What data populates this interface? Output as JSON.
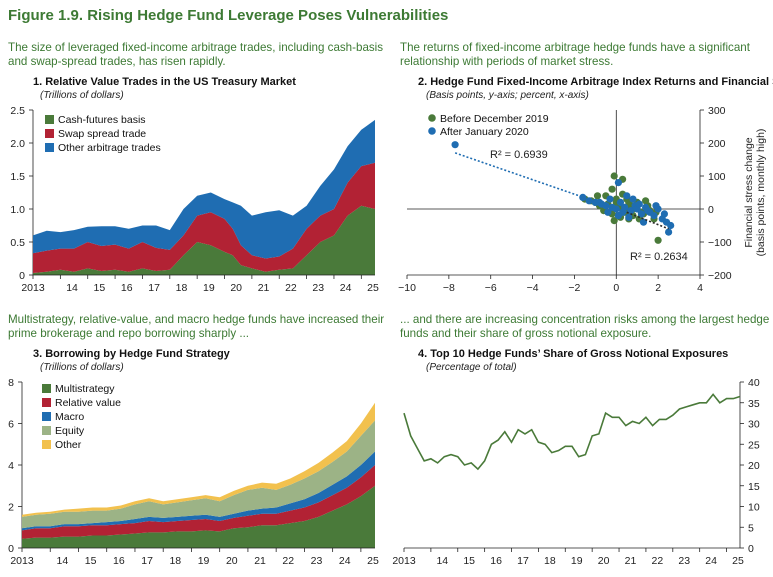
{
  "figure": {
    "title": "Figure 1.9. Rising Hedge Fund Leverage Poses Vulnerabilities",
    "lead_1_line1": "The size of leveraged fixed-income arbitrage trades, including cash-basis",
    "lead_1_line2": "and swap-spread trades, has risen rapidly.",
    "lead_2_line1": "The returns of fixed-income arbitrage hedge funds have a significant",
    "lead_2_line2": "relationship with periods of market stress.",
    "lead_3_line1": "Multistrategy, relative-value, and macro hedge funds have increased their",
    "lead_3_line2": "prime brokerage and repo borrowing sharply ...",
    "lead_4_line1": "... and there are increasing concentration risks among the largest hedge",
    "lead_4_line2": "funds and their share of gross notional exposure."
  },
  "chart_data": [
    {
      "id": "panel1",
      "type": "area",
      "stacked": true,
      "title": "1. Relative Value Trades in the US Treasury Market",
      "subtitle": "(Trillions of dollars)",
      "x_tick_labels": [
        "2013",
        "14",
        "15",
        "16",
        "17",
        "18",
        "19",
        "20",
        "21",
        "22",
        "23",
        "24",
        "25"
      ],
      "x_range": [
        2013,
        2025.5
      ],
      "ylim": [
        0,
        2.5
      ],
      "y_ticks": [
        0,
        0.5,
        1.0,
        1.5,
        2.0,
        2.5
      ],
      "y_tick_labels": [
        "0",
        "0.5",
        "1.0",
        "1.5",
        "2.0",
        "2.5"
      ],
      "legend_position": "top-left",
      "colors": [
        "#4a7a3a",
        "#b22234",
        "#1f6db2"
      ],
      "series": [
        {
          "name": "Cash-futures basis",
          "x": [
            2013,
            2013.5,
            2014,
            2014.5,
            2015,
            2015.5,
            2016,
            2016.5,
            2017,
            2017.5,
            2018,
            2018.5,
            2019,
            2019.5,
            2020,
            2020.3,
            2020.6,
            2021,
            2021.5,
            2022,
            2022.5,
            2023,
            2023.5,
            2024,
            2024.5,
            2025,
            2025.5
          ],
          "values": [
            0.03,
            0.05,
            0.08,
            0.05,
            0.1,
            0.06,
            0.08,
            0.05,
            0.1,
            0.06,
            0.08,
            0.3,
            0.5,
            0.45,
            0.35,
            0.3,
            0.15,
            0.1,
            0.05,
            0.08,
            0.1,
            0.3,
            0.5,
            0.6,
            0.9,
            1.05,
            1.0
          ]
        },
        {
          "name": "Swap spread trade",
          "x": [
            2013,
            2013.5,
            2014,
            2014.5,
            2015,
            2015.5,
            2016,
            2016.5,
            2017,
            2017.5,
            2018,
            2018.5,
            2019,
            2019.5,
            2020,
            2020.3,
            2020.6,
            2021,
            2021.5,
            2022,
            2022.5,
            2023,
            2023.5,
            2024,
            2024.5,
            2025,
            2025.5
          ],
          "values": [
            0.3,
            0.32,
            0.32,
            0.35,
            0.4,
            0.38,
            0.38,
            0.35,
            0.4,
            0.35,
            0.3,
            0.3,
            0.4,
            0.5,
            0.5,
            0.4,
            0.3,
            0.2,
            0.2,
            0.2,
            0.3,
            0.4,
            0.4,
            0.4,
            0.5,
            0.6,
            0.7
          ]
        },
        {
          "name": "Other arbitrage trades",
          "x": [
            2013,
            2013.5,
            2014,
            2014.5,
            2015,
            2015.5,
            2016,
            2016.5,
            2017,
            2017.5,
            2018,
            2018.5,
            2019,
            2019.5,
            2020,
            2020.3,
            2020.6,
            2021,
            2021.5,
            2022,
            2022.5,
            2023,
            2023.5,
            2024,
            2024.5,
            2025,
            2025.5
          ],
          "values": [
            0.27,
            0.3,
            0.25,
            0.28,
            0.23,
            0.3,
            0.28,
            0.3,
            0.25,
            0.34,
            0.3,
            0.4,
            0.3,
            0.3,
            0.3,
            0.4,
            0.6,
            0.6,
            0.7,
            0.7,
            0.5,
            0.35,
            0.45,
            0.6,
            0.55,
            0.55,
            0.65
          ]
        }
      ]
    },
    {
      "id": "panel2",
      "type": "scatter",
      "title": "2. Hedge Fund Fixed-Income Arbitrage Index Returns and Financial Stress",
      "subtitle": "(Basis points, y-axis; percent, x-axis)",
      "xlim": [
        -10,
        4
      ],
      "ylim": [
        -200,
        300
      ],
      "x_ticks": [
        -10,
        -8,
        -6,
        -4,
        -2,
        0,
        2,
        4
      ],
      "x_tick_labels": [
        "−10",
        "−8",
        "−6",
        "−4",
        "−2",
        "0",
        "2",
        "4"
      ],
      "y_ticks": [
        -200,
        -100,
        0,
        100,
        200,
        300
      ],
      "y_tick_labels": [
        "−200",
        "−100",
        "0",
        "100",
        "200",
        "300"
      ],
      "ylabel_line1": "Financial stress change",
      "ylabel_line2": "(basis points, monthly high)",
      "legend_position": "top-left",
      "series": [
        {
          "name": "Before December 2019",
          "color": "#4a7a3a",
          "x": [
            -1.5,
            -1.0,
            -0.8,
            -0.5,
            -0.3,
            -0.2,
            -0.1,
            0.0,
            0.1,
            0.2,
            0.3,
            0.4,
            0.5,
            0.6,
            0.7,
            0.8,
            1.0,
            1.2,
            1.5,
            1.8,
            2.0,
            -0.6,
            0.2,
            0.9,
            1.3,
            0.0,
            -0.4,
            0.5,
            1.1,
            -1.2,
            0.3,
            0.7,
            1.6,
            -0.2,
            0.6,
            1.9,
            -0.9,
            1.4,
            -0.1,
            0.8
          ],
          "y": [
            30,
            20,
            10,
            40,
            -10,
            60,
            100,
            20,
            -20,
            5,
            90,
            -10,
            30,
            -30,
            10,
            -20,
            20,
            -10,
            10,
            -30,
            -95,
            -5,
            -25,
            5,
            -15,
            30,
            15,
            -5,
            -30,
            25,
            45,
            -15,
            -5,
            -15,
            20,
            -10,
            40,
            25,
            -35,
            0
          ]
        },
        {
          "name": "After January 2020",
          "color": "#1f6db2",
          "x": [
            -7.7,
            -1.6,
            -1.3,
            -1.0,
            -0.7,
            -0.5,
            -0.3,
            -0.2,
            0.0,
            0.1,
            0.2,
            0.3,
            0.5,
            0.7,
            0.9,
            1.0,
            1.2,
            1.4,
            1.6,
            1.8,
            2.0,
            2.2,
            2.4,
            2.5,
            0.1,
            0.4,
            -0.8,
            0.6,
            1.1,
            1.5,
            2.3,
            -0.4,
            0.8,
            1.3,
            1.9,
            2.6
          ],
          "y": [
            195,
            35,
            25,
            20,
            15,
            10,
            30,
            5,
            0,
            80,
            20,
            -10,
            40,
            -5,
            10,
            0,
            -15,
            5,
            -10,
            -20,
            0,
            -30,
            -40,
            -70,
            -20,
            5,
            20,
            -25,
            15,
            -5,
            -15,
            -10,
            30,
            -40,
            10,
            -50
          ]
        }
      ],
      "fit_lines": [
        {
          "label": "R² = 0.6939",
          "x": [
            -7.7,
            0.5
          ],
          "y": [
            170,
            -10
          ]
        },
        {
          "label": "R² = 0.2634",
          "x": [
            0.5,
            2.5
          ],
          "y": [
            -10,
            -60
          ]
        }
      ]
    },
    {
      "id": "panel3",
      "type": "area",
      "stacked": true,
      "title": "3. Borrowing by Hedge Fund Strategy",
      "subtitle": "(Trillions of dollars)",
      "x_tick_labels": [
        "2013",
        "14",
        "15",
        "16",
        "17",
        "18",
        "19",
        "20",
        "21",
        "22",
        "23",
        "24",
        "25"
      ],
      "x_range": [
        2013,
        2025.5
      ],
      "ylim": [
        0,
        8
      ],
      "y_ticks": [
        0,
        2,
        4,
        6,
        8
      ],
      "y_tick_labels": [
        "0",
        "2",
        "4",
        "6",
        "8"
      ],
      "legend_position": "top-left",
      "colors": [
        "#4a7a3a",
        "#b22234",
        "#1f6db2",
        "#9cb386",
        "#f2c14e"
      ],
      "series": [
        {
          "name": "Multistrategy",
          "x": [
            2013,
            2013.5,
            2014,
            2014.5,
            2015,
            2015.5,
            2016,
            2016.5,
            2017,
            2017.5,
            2018,
            2018.5,
            2019,
            2019.5,
            2020,
            2020.5,
            2021,
            2021.5,
            2022,
            2022.5,
            2023,
            2023.5,
            2024,
            2024.5,
            2025,
            2025.5
          ],
          "values": [
            0.45,
            0.5,
            0.5,
            0.55,
            0.55,
            0.6,
            0.6,
            0.65,
            0.7,
            0.75,
            0.75,
            0.8,
            0.8,
            0.85,
            0.8,
            0.95,
            1.0,
            1.1,
            1.1,
            1.2,
            1.3,
            1.5,
            1.8,
            2.1,
            2.5,
            3.0
          ]
        },
        {
          "name": "Relative value",
          "x": [
            2013,
            2013.5,
            2014,
            2014.5,
            2015,
            2015.5,
            2016,
            2016.5,
            2017,
            2017.5,
            2018,
            2018.5,
            2019,
            2019.5,
            2020,
            2020.5,
            2021,
            2021.5,
            2022,
            2022.5,
            2023,
            2023.5,
            2024,
            2024.5,
            2025,
            2025.5
          ],
          "values": [
            0.4,
            0.45,
            0.45,
            0.5,
            0.5,
            0.5,
            0.5,
            0.5,
            0.5,
            0.55,
            0.5,
            0.5,
            0.55,
            0.55,
            0.5,
            0.5,
            0.55,
            0.55,
            0.55,
            0.6,
            0.65,
            0.7,
            0.75,
            0.8,
            0.9,
            1.0
          ]
        },
        {
          "name": "Macro",
          "x": [
            2013,
            2013.5,
            2014,
            2014.5,
            2015,
            2015.5,
            2016,
            2016.5,
            2017,
            2017.5,
            2018,
            2018.5,
            2019,
            2019.5,
            2020,
            2020.5,
            2021,
            2021.5,
            2022,
            2022.5,
            2023,
            2023.5,
            2024,
            2024.5,
            2025,
            2025.5
          ],
          "values": [
            0.1,
            0.1,
            0.1,
            0.1,
            0.1,
            0.1,
            0.15,
            0.15,
            0.2,
            0.2,
            0.2,
            0.2,
            0.2,
            0.2,
            0.2,
            0.2,
            0.25,
            0.25,
            0.3,
            0.35,
            0.4,
            0.45,
            0.5,
            0.55,
            0.6,
            0.65
          ]
        },
        {
          "name": "Equity",
          "x": [
            2013,
            2013.5,
            2014,
            2014.5,
            2015,
            2015.5,
            2016,
            2016.5,
            2017,
            2017.5,
            2018,
            2018.5,
            2019,
            2019.5,
            2020,
            2020.5,
            2021,
            2021.5,
            2022,
            2022.5,
            2023,
            2023.5,
            2024,
            2024.5,
            2025,
            2025.5
          ],
          "values": [
            0.55,
            0.55,
            0.6,
            0.6,
            0.6,
            0.6,
            0.55,
            0.6,
            0.7,
            0.75,
            0.65,
            0.7,
            0.75,
            0.8,
            0.75,
            0.9,
            1.0,
            1.0,
            0.85,
            0.9,
            1.0,
            1.05,
            1.1,
            1.2,
            1.4,
            1.5
          ]
        },
        {
          "name": "Other",
          "x": [
            2013,
            2013.5,
            2014,
            2014.5,
            2015,
            2015.5,
            2016,
            2016.5,
            2017,
            2017.5,
            2018,
            2018.5,
            2019,
            2019.5,
            2020,
            2020.5,
            2021,
            2021.5,
            2022,
            2022.5,
            2023,
            2023.5,
            2024,
            2024.5,
            2025,
            2025.5
          ],
          "values": [
            0.1,
            0.1,
            0.1,
            0.1,
            0.15,
            0.15,
            0.15,
            0.15,
            0.15,
            0.15,
            0.15,
            0.15,
            0.15,
            0.15,
            0.2,
            0.2,
            0.2,
            0.25,
            0.3,
            0.3,
            0.35,
            0.4,
            0.45,
            0.5,
            0.6,
            0.85
          ]
        }
      ]
    },
    {
      "id": "panel4",
      "type": "line",
      "title": "4. Top 10 Hedge Funds’ Share of Gross Notional Exposures",
      "subtitle": "(Percentage of total)",
      "x_tick_labels": [
        "2013",
        "14",
        "15",
        "16",
        "17",
        "18",
        "19",
        "20",
        "21",
        "22",
        "23",
        "24",
        "25"
      ],
      "x_range": [
        2013,
        2025.5
      ],
      "ylim": [
        0,
        40
      ],
      "y_ticks": [
        0,
        5,
        10,
        15,
        20,
        25,
        30,
        35,
        40
      ],
      "y_tick_labels": [
        "0",
        "5",
        "10",
        "15",
        "20",
        "25",
        "30",
        "35",
        "40"
      ],
      "series": [
        {
          "name": "Top 10 share",
          "color": "#4a7a3a",
          "x": [
            2013,
            2013.25,
            2013.5,
            2013.75,
            2014,
            2014.25,
            2014.5,
            2014.75,
            2015,
            2015.25,
            2015.5,
            2015.75,
            2016,
            2016.25,
            2016.5,
            2016.75,
            2017,
            2017.25,
            2017.5,
            2017.75,
            2018,
            2018.25,
            2018.5,
            2018.75,
            2019,
            2019.25,
            2019.5,
            2019.75,
            2020,
            2020.25,
            2020.5,
            2020.75,
            2021,
            2021.25,
            2021.5,
            2021.75,
            2022,
            2022.25,
            2022.5,
            2022.75,
            2023,
            2023.25,
            2023.5,
            2023.75,
            2024,
            2024.25,
            2024.5,
            2024.75,
            2025,
            2025.25,
            2025.5
          ],
          "values": [
            32.5,
            27,
            24,
            21,
            21.5,
            20.5,
            22,
            22.5,
            22,
            20,
            20.5,
            19,
            21,
            25,
            26,
            28,
            25.5,
            28.5,
            27.5,
            28.5,
            25.5,
            25,
            23,
            23.5,
            24.5,
            24.5,
            22,
            22.5,
            27,
            27.5,
            32.5,
            31.5,
            31.5,
            29.5,
            30.5,
            30,
            31.5,
            29.5,
            31,
            31,
            32,
            33.5,
            34,
            34.5,
            35,
            35,
            37,
            35,
            36,
            36,
            36.5
          ]
        }
      ]
    }
  ]
}
